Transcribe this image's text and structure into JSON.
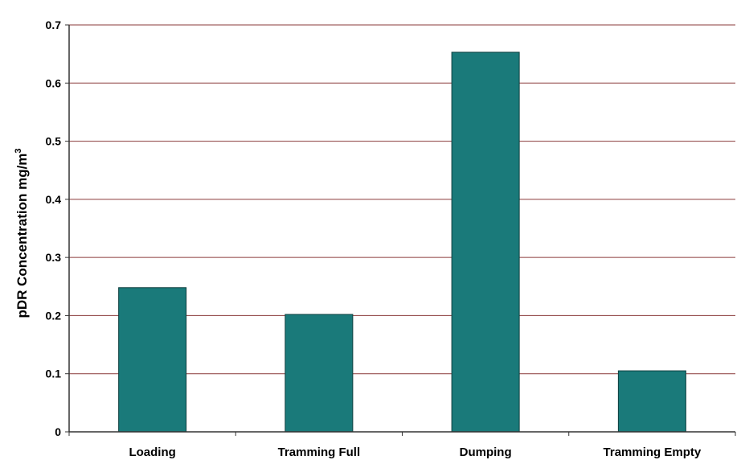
{
  "chart_data": {
    "type": "bar",
    "title": "",
    "xlabel": "",
    "ylabel": "pDR Concentration mg/m",
    "ylabel_superscript": "3",
    "categories": [
      "Loading",
      "Tramming Full",
      "Dumping",
      "Tramming Empty"
    ],
    "values": [
      0.248,
      0.202,
      0.653,
      0.105
    ],
    "ylim": [
      0,
      0.7
    ],
    "yticks": [
      "0",
      "0.1",
      "0.2",
      "0.3",
      "0.4",
      "0.5",
      "0.6",
      "0.7"
    ],
    "grid": true,
    "legend": "none",
    "bar_color": "#1a7a7a",
    "grid_color": "#8a3a3a"
  }
}
